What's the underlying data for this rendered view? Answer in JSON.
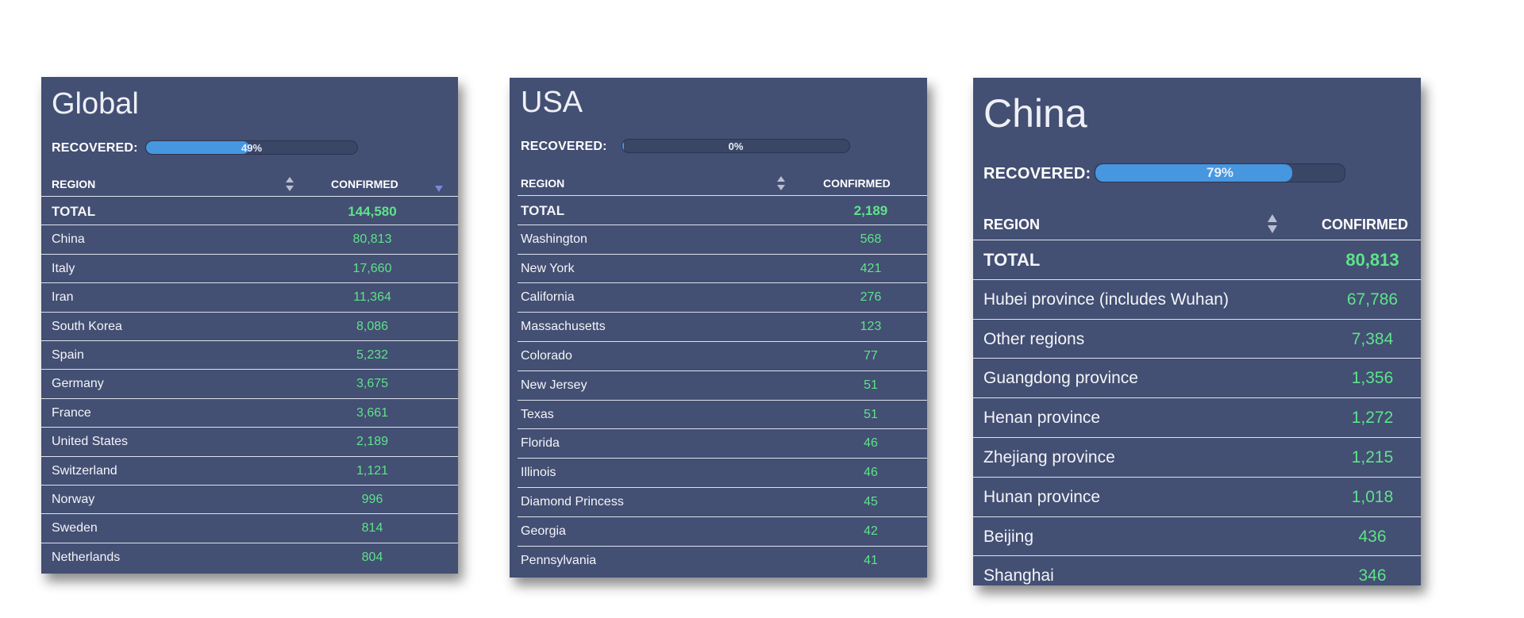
{
  "panels": [
    {
      "title": "Global",
      "recovered_label": "RECOVERED:",
      "recovered_pct": 49,
      "recovered_text": "49%",
      "columns": {
        "region": "REGION",
        "confirmed": "CONFIRMED"
      },
      "icons": {
        "region_sort": "sort-updown-icon",
        "confirmed_sort": "sort-desc-icon"
      },
      "total": {
        "name": "TOTAL",
        "value": "144,580"
      },
      "rows": [
        {
          "name": "China",
          "value": "80,813"
        },
        {
          "name": "Italy",
          "value": "17,660"
        },
        {
          "name": "Iran",
          "value": "11,364"
        },
        {
          "name": "South Korea",
          "value": "8,086"
        },
        {
          "name": "Spain",
          "value": "5,232"
        },
        {
          "name": "Germany",
          "value": "3,675"
        },
        {
          "name": "France",
          "value": "3,661"
        },
        {
          "name": "United States",
          "value": "2,189"
        },
        {
          "name": "Switzerland",
          "value": "1,121"
        },
        {
          "name": "Norway",
          "value": "996"
        },
        {
          "name": "Sweden",
          "value": "814"
        },
        {
          "name": "Netherlands",
          "value": "804"
        }
      ]
    },
    {
      "title": "USA",
      "recovered_label": "RECOVERED:",
      "recovered_pct": 0,
      "recovered_text": "0%",
      "columns": {
        "region": "REGION",
        "confirmed": "CONFIRMED"
      },
      "icons": {
        "region_sort": "sort-updown-icon"
      },
      "total": {
        "name": "TOTAL",
        "value": "2,189"
      },
      "rows": [
        {
          "name": "Washington",
          "value": "568"
        },
        {
          "name": "New York",
          "value": "421"
        },
        {
          "name": "California",
          "value": "276"
        },
        {
          "name": "Massachusetts",
          "value": "123"
        },
        {
          "name": "Colorado",
          "value": "77"
        },
        {
          "name": "New Jersey",
          "value": "51"
        },
        {
          "name": "Texas",
          "value": "51"
        },
        {
          "name": "Florida",
          "value": "46"
        },
        {
          "name": "Illinois",
          "value": "46"
        },
        {
          "name": "Diamond Princess",
          "value": "45"
        },
        {
          "name": "Georgia",
          "value": "42"
        },
        {
          "name": "Pennsylvania",
          "value": "41"
        }
      ]
    },
    {
      "title": "China",
      "recovered_label": "RECOVERED:",
      "recovered_pct": 79,
      "recovered_text": "79%",
      "columns": {
        "region": "REGION",
        "confirmed": "CONFIRMED"
      },
      "icons": {
        "region_sort": "sort-updown-icon"
      },
      "total": {
        "name": "TOTAL",
        "value": "80,813"
      },
      "rows": [
        {
          "name": "Hubei province (includes Wuhan)",
          "value": "67,786"
        },
        {
          "name": "Other regions",
          "value": "7,384"
        },
        {
          "name": "Guangdong province",
          "value": "1,356"
        },
        {
          "name": "Henan province",
          "value": "1,272"
        },
        {
          "name": "Zhejiang province",
          "value": "1,215"
        },
        {
          "name": "Hunan province",
          "value": "1,018"
        },
        {
          "name": "Beijing",
          "value": "436"
        },
        {
          "name": "Shanghai",
          "value": "346"
        }
      ]
    }
  ],
  "colors": {
    "panel_bg": "#434f73",
    "bar_fill": "#4697e0",
    "value_green": "#5ee38a",
    "divider": "#dfe3ee"
  }
}
